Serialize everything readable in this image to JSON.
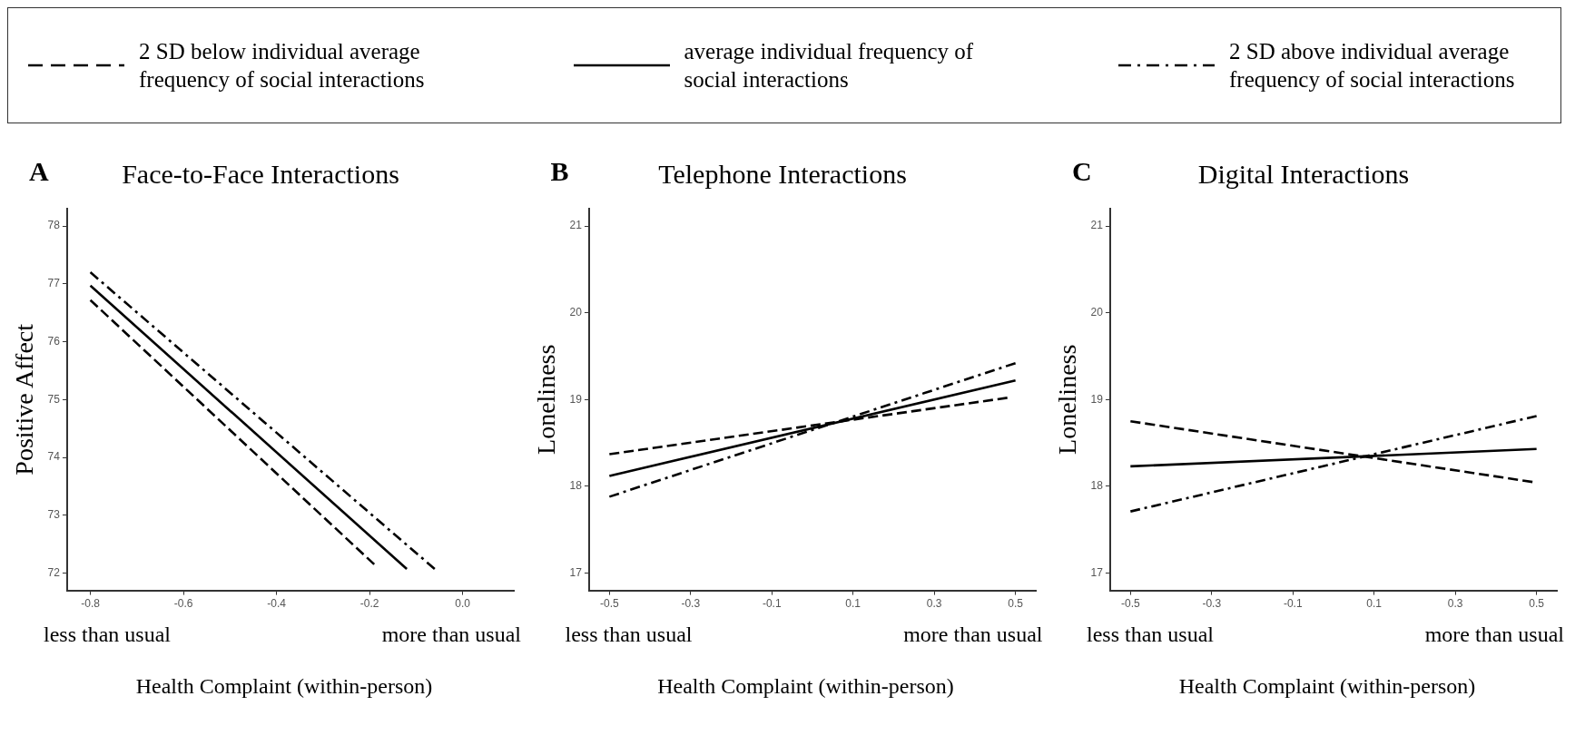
{
  "chart_data": [
    {
      "type": "line",
      "title": "Face-to-Face Interactions",
      "xlabel": "Health Complaint (within-person)",
      "ylabel": "Positive Affect",
      "annotations": [
        "A",
        "less than usual",
        "more than usual"
      ],
      "xlim": [
        -0.85,
        0.11
      ],
      "xticks": [
        -0.8,
        -0.6,
        -0.4,
        -0.2,
        {
          "value": 0,
          "label": "0.0"
        }
      ],
      "ylim": [
        71.7,
        78.3
      ],
      "yticks": [
        72,
        73,
        74,
        75,
        76,
        77,
        78
      ],
      "legend": "top",
      "marker": "none",
      "series": [
        {
          "name": "2 SD below individual average frequency of social interactions",
          "color": "#000000",
          "line_style": "dashed",
          "x": [
            -0.8,
            -0.19
          ],
          "values": [
            76.72,
            72.15
          ]
        },
        {
          "name": "average individual frequency of social interactions",
          "color": "#000000",
          "line_style": "solid",
          "x": [
            -0.8,
            -0.12
          ],
          "values": [
            76.97,
            72.07
          ]
        },
        {
          "name": "2 SD above individual average frequency of social interactions",
          "color": "#000000",
          "line_style": "dotted",
          "x": [
            -0.8,
            -0.06
          ],
          "values": [
            77.2,
            72.07
          ]
        }
      ]
    },
    {
      "type": "line",
      "title": "Telephone Interactions",
      "xlabel": "Health Complaint (within-person)",
      "ylabel": "Loneliness",
      "annotations": [
        "B",
        "less than usual",
        "more than usual"
      ],
      "xlim": [
        -0.55,
        0.55
      ],
      "xticks": [
        -0.5,
        -0.3,
        -0.1,
        0.1,
        0.3,
        0.5
      ],
      "ylim": [
        16.8,
        21.2
      ],
      "yticks": [
        17,
        18,
        19,
        20,
        21
      ],
      "marker": "none",
      "series": [
        {
          "name": "2 SD below individual average frequency of social interactions",
          "color": "#000000",
          "line_style": "dashed",
          "x": [
            -0.5,
            0.48
          ],
          "values": [
            18.37,
            19.02
          ]
        },
        {
          "name": "average individual frequency of social interactions",
          "color": "#000000",
          "line_style": "solid",
          "x": [
            -0.5,
            0.5
          ],
          "values": [
            18.12,
            19.22
          ]
        },
        {
          "name": "2 SD above individual average frequency of social interactions",
          "color": "#000000",
          "line_style": "dotted",
          "x": [
            -0.5,
            0.5
          ],
          "values": [
            17.88,
            19.42
          ]
        }
      ]
    },
    {
      "type": "line",
      "title": "Digital Interactions",
      "xlabel": "Health Complaint (within-person)",
      "ylabel": "Loneliness",
      "annotations": [
        "C",
        "less than usual",
        "more than usual"
      ],
      "xlim": [
        -0.55,
        0.55
      ],
      "xticks": [
        -0.5,
        -0.3,
        -0.1,
        0.1,
        0.3,
        0.5
      ],
      "ylim": [
        16.8,
        21.2
      ],
      "yticks": [
        17,
        18,
        19,
        20,
        21
      ],
      "marker": "none",
      "series": [
        {
          "name": "2 SD below individual average frequency of social interactions",
          "color": "#000000",
          "line_style": "dashed",
          "x": [
            -0.5,
            0.49
          ],
          "values": [
            18.75,
            18.05
          ]
        },
        {
          "name": "average individual frequency of social interactions",
          "color": "#000000",
          "line_style": "solid",
          "x": [
            -0.5,
            0.5
          ],
          "values": [
            18.23,
            18.43
          ]
        },
        {
          "name": "2 SD above individual average frequency of social interactions",
          "color": "#000000",
          "line_style": "dotted",
          "x": [
            -0.5,
            0.5
          ],
          "values": [
            17.71,
            18.81
          ]
        }
      ]
    }
  ]
}
